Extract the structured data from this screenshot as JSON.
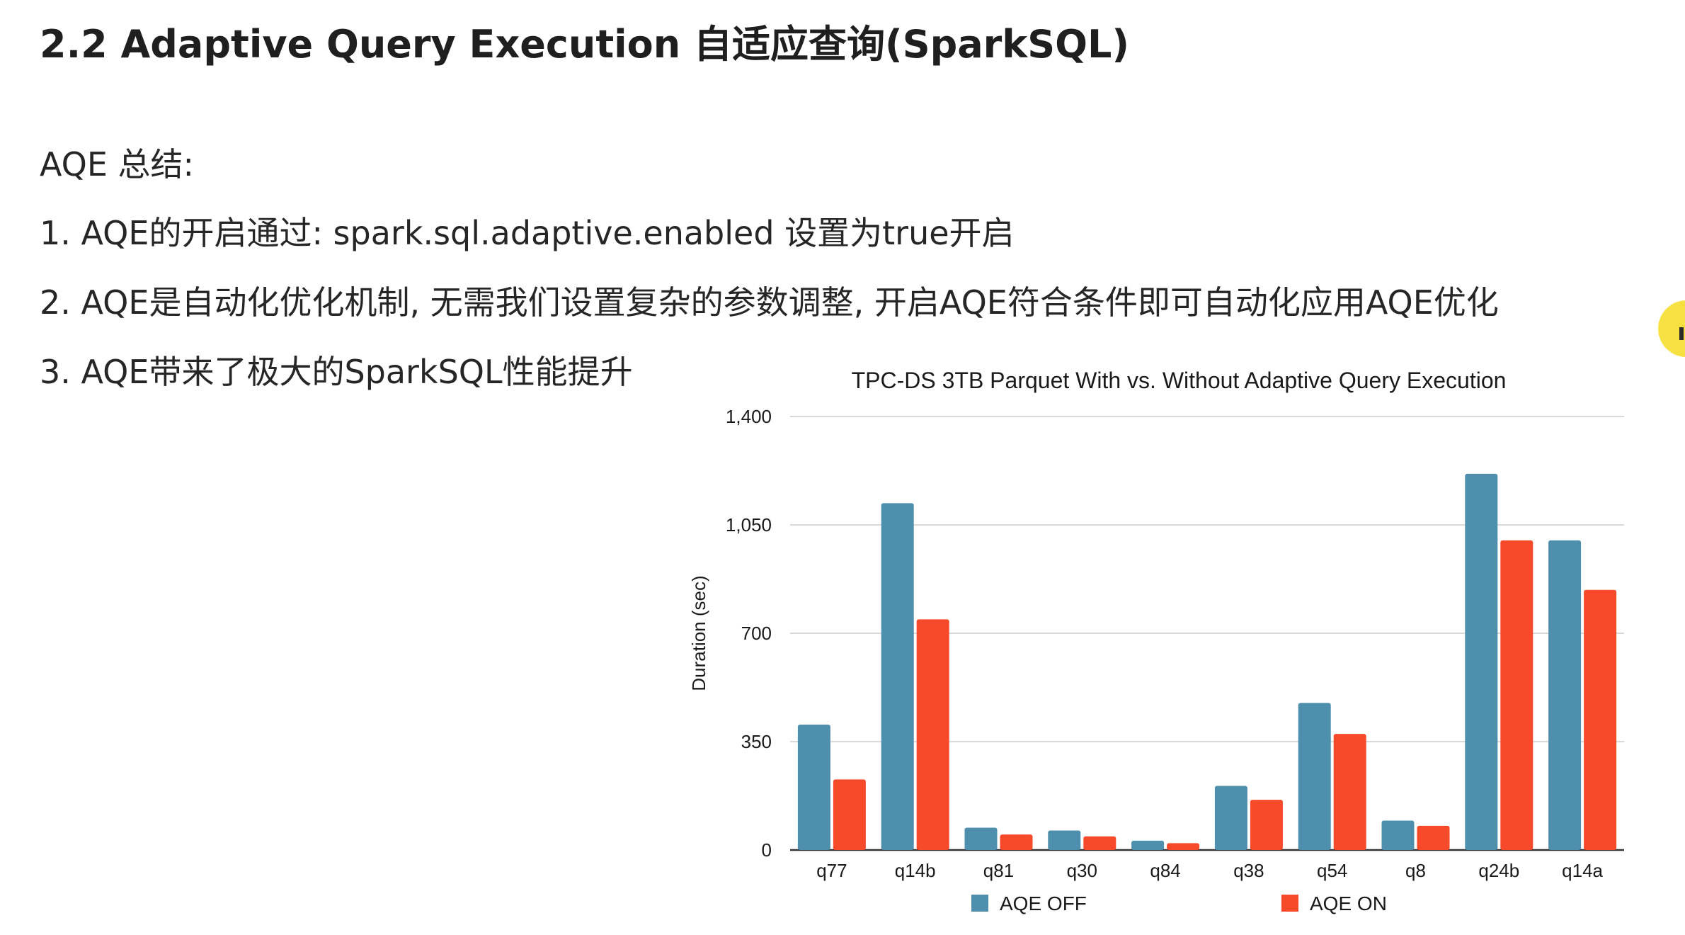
{
  "slide": {
    "title": "2.2 Adaptive Query Execution 自适应查询(SparkSQL)",
    "summary_heading": "AQE 总结:",
    "summary_items": [
      "1. AQE的开启通过: spark.sql.adaptive.enabled 设置为true开启",
      "2. AQE是自动化优化机制, 无需我们设置复杂的参数调整, 开启AQE符合条件即可自动化应用AQE优化",
      "3. AQE带来了极大的SparkSQL性能提升"
    ]
  },
  "chart_data": {
    "type": "bar",
    "title": "TPC-DS 3TB Parquet With vs. Without Adaptive Query Execution",
    "xlabel": "",
    "ylabel": "Duration (sec)",
    "ylim": [
      0,
      1400
    ],
    "yticks": [
      0,
      350,
      700,
      1050,
      1400
    ],
    "ytick_labels": [
      "0",
      "350",
      "700",
      "1,050",
      "1,400"
    ],
    "grid": true,
    "legend_position": "bottom",
    "categories": [
      "q77",
      "q14b",
      "q81",
      "q30",
      "q84",
      "q38",
      "q54",
      "q8",
      "q24b",
      "q14a"
    ],
    "series": [
      {
        "name": "AQE OFF",
        "color": "#4e8fae",
        "values": [
          405,
          1120,
          72,
          63,
          30,
          207,
          475,
          95,
          1215,
          1000
        ]
      },
      {
        "name": "AQE ON",
        "color": "#f64a2a",
        "values": [
          228,
          745,
          50,
          44,
          22,
          162,
          375,
          78,
          1000,
          840
        ]
      }
    ]
  }
}
